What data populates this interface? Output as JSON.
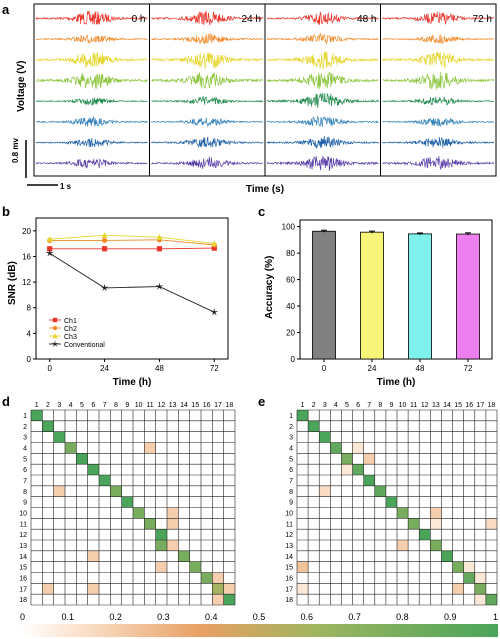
{
  "panels": {
    "a": "a",
    "b": "b",
    "c": "c",
    "d": "d",
    "e": "e"
  },
  "chart_data": [
    {
      "type": "line",
      "panel": "a",
      "description_source": "voltage traces",
      "ylabel": "Voltage (V)",
      "xlabel": "Time (s)",
      "scale_bar_v": "0.8 mv",
      "scale_bar_t": "1 s",
      "time_labels": [
        "0 h",
        "24 h",
        "48 h",
        "72 h"
      ],
      "trace_colors": [
        "#e8342b",
        "#f08a2b",
        "#e6d52e",
        "#8cc63f",
        "#1f8a4c",
        "#2d7fb8",
        "#1d5fa8",
        "#5a3ea8"
      ],
      "trace_amplitudes": [
        [
          0.8,
          0.8,
          0.7,
          0.7
        ],
        [
          0.5,
          0.6,
          0.6,
          0.5
        ],
        [
          0.9,
          1.0,
          1.0,
          0.9
        ],
        [
          1.0,
          1.0,
          1.0,
          1.0
        ],
        [
          0.4,
          0.5,
          0.9,
          0.5
        ],
        [
          0.5,
          0.5,
          0.6,
          0.5
        ],
        [
          0.5,
          0.6,
          0.7,
          0.6
        ],
        [
          0.6,
          0.7,
          0.9,
          0.8
        ]
      ]
    },
    {
      "type": "line",
      "panel": "b",
      "x": [
        0,
        24,
        48,
        72
      ],
      "xlabel": "Time (h)",
      "ylabel": "SNR (dB)",
      "ylim": [
        0,
        22
      ],
      "yticks": [
        0,
        4,
        8,
        12,
        16,
        20
      ],
      "xticks": [
        0,
        24,
        48,
        72
      ],
      "legend": "bottom-left",
      "series": [
        {
          "name": "Ch1",
          "color": "#e8342b",
          "marker": "square",
          "values": [
            17.2,
            17.2,
            17.2,
            17.3
          ]
        },
        {
          "name": "Ch2",
          "color": "#f08a2b",
          "marker": "circle",
          "values": [
            18.5,
            18.5,
            18.6,
            17.8
          ]
        },
        {
          "name": "Ch3",
          "color": "#e6d52e",
          "marker": "triangle",
          "values": [
            18.7,
            19.3,
            19.0,
            18.0
          ]
        },
        {
          "name": "Conventional",
          "color": "#222222",
          "marker": "star",
          "values": [
            16.5,
            11.1,
            11.3,
            7.3
          ]
        }
      ]
    },
    {
      "type": "bar",
      "panel": "c",
      "categories": [
        "0",
        "24",
        "48",
        "72"
      ],
      "values": [
        96.5,
        95.8,
        94.5,
        94.4
      ],
      "errors": [
        0.8,
        0.8,
        0.7,
        0.9
      ],
      "colors": [
        "#808080",
        "#f6f57a",
        "#7ff2ee",
        "#ee7fee"
      ],
      "xlabel": "Time (h)",
      "ylabel": "Accuracy (%)",
      "ylim": [
        0,
        105
      ],
      "yticks": [
        0,
        20,
        40,
        60,
        80,
        100
      ]
    },
    {
      "type": "heatmap",
      "panel": "d",
      "size": 18,
      "labels": [
        "1",
        "2",
        "3",
        "4",
        "5",
        "6",
        "7",
        "8",
        "9",
        "10",
        "11",
        "12",
        "13",
        "14",
        "15",
        "16",
        "17",
        "18"
      ],
      "cells": [
        {
          "r": 0,
          "c": 0,
          "v": 1.0
        },
        {
          "r": 1,
          "c": 1,
          "v": 1.0
        },
        {
          "r": 2,
          "c": 2,
          "v": 1.0
        },
        {
          "r": 3,
          "c": 3,
          "v": 0.8
        },
        {
          "r": 3,
          "c": 10,
          "v": 0.2
        },
        {
          "r": 4,
          "c": 4,
          "v": 1.0
        },
        {
          "r": 5,
          "c": 5,
          "v": 1.0
        },
        {
          "r": 6,
          "c": 6,
          "v": 1.0
        },
        {
          "r": 7,
          "c": 7,
          "v": 0.8
        },
        {
          "r": 7,
          "c": 2,
          "v": 0.2
        },
        {
          "r": 8,
          "c": 8,
          "v": 1.0
        },
        {
          "r": 9,
          "c": 9,
          "v": 0.8
        },
        {
          "r": 9,
          "c": 12,
          "v": 0.2
        },
        {
          "r": 10,
          "c": 10,
          "v": 0.8
        },
        {
          "r": 10,
          "c": 12,
          "v": 0.2
        },
        {
          "r": 11,
          "c": 11,
          "v": 1.0
        },
        {
          "r": 12,
          "c": 11,
          "v": 0.8
        },
        {
          "r": 12,
          "c": 12,
          "v": 0.2
        },
        {
          "r": 13,
          "c": 13,
          "v": 0.8
        },
        {
          "r": 13,
          "c": 5,
          "v": 0.2
        },
        {
          "r": 14,
          "c": 14,
          "v": 0.8
        },
        {
          "r": 14,
          "c": 11,
          "v": 0.2
        },
        {
          "r": 15,
          "c": 15,
          "v": 0.8
        },
        {
          "r": 15,
          "c": 16,
          "v": 0.2
        },
        {
          "r": 16,
          "c": 16,
          "v": 0.6
        },
        {
          "r": 16,
          "c": 1,
          "v": 0.2
        },
        {
          "r": 16,
          "c": 5,
          "v": 0.2
        },
        {
          "r": 16,
          "c": 17,
          "v": 0.2
        },
        {
          "r": 17,
          "c": 17,
          "v": 1.0
        },
        {
          "r": 17,
          "c": 16,
          "v": 0.2
        }
      ]
    },
    {
      "type": "heatmap",
      "panel": "e",
      "size": 18,
      "labels": [
        "1",
        "2",
        "3",
        "4",
        "5",
        "6",
        "7",
        "8",
        "9",
        "10",
        "11",
        "12",
        "13",
        "14",
        "15",
        "16",
        "17",
        "18"
      ],
      "cells": [
        {
          "r": 0,
          "c": 0,
          "v": 1.0
        },
        {
          "r": 1,
          "c": 1,
          "v": 1.0
        },
        {
          "r": 2,
          "c": 2,
          "v": 1.0
        },
        {
          "r": 3,
          "c": 3,
          "v": 0.9
        },
        {
          "r": 3,
          "c": 5,
          "v": 0.1
        },
        {
          "r": 4,
          "c": 4,
          "v": 0.8
        },
        {
          "r": 4,
          "c": 6,
          "v": 0.2
        },
        {
          "r": 5,
          "c": 5,
          "v": 0.9
        },
        {
          "r": 5,
          "c": 4,
          "v": 0.1
        },
        {
          "r": 6,
          "c": 6,
          "v": 1.0
        },
        {
          "r": 7,
          "c": 7,
          "v": 0.9
        },
        {
          "r": 7,
          "c": 2,
          "v": 0.15
        },
        {
          "r": 8,
          "c": 8,
          "v": 1.0
        },
        {
          "r": 9,
          "c": 9,
          "v": 0.8
        },
        {
          "r": 9,
          "c": 12,
          "v": 0.2
        },
        {
          "r": 10,
          "c": 10,
          "v": 0.8
        },
        {
          "r": 10,
          "c": 12,
          "v": 0.1
        },
        {
          "r": 10,
          "c": 17,
          "v": 0.15
        },
        {
          "r": 11,
          "c": 11,
          "v": 1.0
        },
        {
          "r": 12,
          "c": 12,
          "v": 0.8
        },
        {
          "r": 12,
          "c": 9,
          "v": 0.2
        },
        {
          "r": 13,
          "c": 13,
          "v": 1.0
        },
        {
          "r": 14,
          "c": 14,
          "v": 0.8
        },
        {
          "r": 14,
          "c": 0,
          "v": 0.25
        },
        {
          "r": 14,
          "c": 15,
          "v": 0.1
        },
        {
          "r": 15,
          "c": 15,
          "v": 0.9
        },
        {
          "r": 15,
          "c": 16,
          "v": 0.1
        },
        {
          "r": 16,
          "c": 16,
          "v": 0.8
        },
        {
          "r": 16,
          "c": 0,
          "v": 0.1
        },
        {
          "r": 16,
          "c": 14,
          "v": 0.2
        },
        {
          "r": 17,
          "c": 17,
          "v": 0.9
        },
        {
          "r": 17,
          "c": 16,
          "v": 0.1
        }
      ]
    },
    {
      "type": "colorbar",
      "panel": "colorbar",
      "ticks": [
        "0",
        "0.1",
        "0.2",
        "0.3",
        "0.4",
        "0.5",
        "0.6",
        "0.7",
        "0.8",
        "0.9",
        "1"
      ],
      "color_low": "#ffffff",
      "color_mid": "#e8a063",
      "color_high": "#4aa55a"
    }
  ]
}
